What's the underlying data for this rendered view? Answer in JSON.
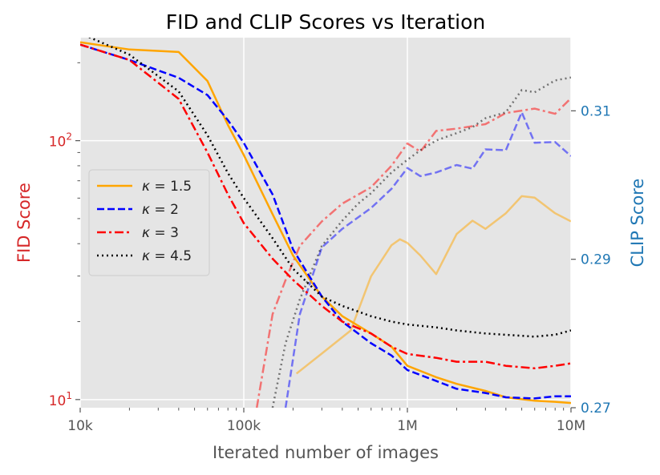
{
  "chart_data": {
    "type": "line",
    "title": "FID and CLIP Scores vs Iteration",
    "xlabel": "Iterated number of images",
    "ylabel_left": "FID Score",
    "ylabel_right": "CLIP Score",
    "x_scale": "log",
    "xlim": [
      10000,
      10000000
    ],
    "x_ticks": [
      {
        "value": 10000,
        "label": "10k"
      },
      {
        "value": 100000,
        "label": "100k"
      },
      {
        "value": 1000000,
        "label": "1M"
      },
      {
        "value": 10000000,
        "label": "10M"
      }
    ],
    "y_left_scale": "log",
    "y_left_lim": [
      9.3,
      250
    ],
    "y_left_ticks": [
      {
        "value": 10,
        "base": "10",
        "exp": "1"
      },
      {
        "value": 100,
        "base": "10",
        "exp": "2"
      }
    ],
    "y_right_lim": [
      0.27,
      0.31986
    ],
    "y_right_ticks": [
      {
        "value": 0.27,
        "label": "0.27"
      },
      {
        "value": 0.29,
        "label": "0.29"
      },
      {
        "value": 0.31,
        "label": "0.31"
      }
    ],
    "legend": {
      "placement": "center-left",
      "entries": [
        {
          "prefix": "κ",
          "value": " = 1.5",
          "color": "#ffa500",
          "dash": "solid"
        },
        {
          "prefix": "κ",
          "value": " = 2",
          "color": "#0000ff",
          "dash": "dashed"
        },
        {
          "prefix": "κ",
          "value": " = 3",
          "color": "#ff0000",
          "dash": "dashdot"
        },
        {
          "prefix": "κ",
          "value": " = 4.5",
          "color": "#000000",
          "dash": "dotted"
        }
      ]
    },
    "fid_series": [
      {
        "name": "κ = 1.5",
        "color": "#ffa500",
        "dash": "solid",
        "x": [
          10000,
          20000,
          40000,
          60000,
          80000,
          100000,
          150000,
          200000,
          300000,
          400000,
          600000,
          800000,
          1000000,
          1500000,
          2000000,
          3000000,
          4000000,
          6000000,
          8000000,
          10000000
        ],
        "y": [
          240,
          225,
          220,
          170,
          115,
          88,
          52,
          36,
          25,
          21,
          18,
          16,
          13.5,
          12.2,
          11.5,
          10.8,
          10.2,
          9.9,
          9.8,
          9.7
        ]
      },
      {
        "name": "κ = 2",
        "color": "#0000ff",
        "dash": "dashed",
        "x": [
          10000,
          20000,
          40000,
          60000,
          80000,
          100000,
          150000,
          200000,
          300000,
          400000,
          600000,
          800000,
          1000000,
          1500000,
          2000000,
          3000000,
          4000000,
          6000000,
          8000000,
          10000000
        ],
        "y": [
          235,
          205,
          175,
          150,
          120,
          98,
          62,
          38,
          25,
          20,
          16.5,
          14.8,
          13,
          11.8,
          11,
          10.6,
          10.2,
          10.1,
          10.3,
          10.3
        ]
      },
      {
        "name": "κ = 3",
        "color": "#ff0000",
        "dash": "dashdot",
        "x": [
          10000,
          20000,
          40000,
          60000,
          80000,
          100000,
          150000,
          200000,
          300000,
          400000,
          600000,
          800000,
          1000000,
          1500000,
          2000000,
          3000000,
          4000000,
          6000000,
          8000000,
          10000000
        ],
        "y": [
          235,
          205,
          145,
          90,
          62,
          48,
          35,
          29,
          23,
          20,
          18,
          16,
          15,
          14.5,
          14,
          14,
          13.5,
          13.2,
          13.5,
          13.8
        ]
      },
      {
        "name": "κ = 4.5",
        "color": "#000000",
        "dash": "dotted",
        "x": [
          10000,
          20000,
          40000,
          60000,
          80000,
          100000,
          150000,
          200000,
          300000,
          400000,
          600000,
          800000,
          1000000,
          1500000,
          2000000,
          3000000,
          4000000,
          6000000,
          8000000,
          10000000
        ],
        "y": [
          260,
          215,
          155,
          105,
          75,
          60,
          42,
          32,
          25,
          23,
          21,
          20,
          19.5,
          19,
          18.5,
          18,
          17.8,
          17.5,
          17.8,
          18.5
        ]
      }
    ],
    "clip_series": [
      {
        "name": "κ = 1.5 (CLIP)",
        "color": "#ffa500",
        "dash": "solid",
        "alpha": 0.5,
        "x": [
          210000,
          300000,
          450000,
          600000,
          800000,
          900000,
          1000000,
          1200000,
          1500000,
          2000000,
          2500000,
          3000000,
          4000000,
          5000000,
          6000000,
          8000000,
          10000000
        ],
        "y": [
          0.2746,
          0.2773,
          0.2804,
          0.2877,
          0.2919,
          0.2927,
          0.2922,
          0.2905,
          0.288,
          0.2934,
          0.2952,
          0.2941,
          0.2962,
          0.2985,
          0.2983,
          0.2962,
          0.2951
        ]
      },
      {
        "name": "κ = 2 (CLIP)",
        "color": "#0000ff",
        "dash": "dashed",
        "alpha": 0.5,
        "x": [
          180000,
          220000,
          300000,
          400000,
          600000,
          800000,
          1000000,
          1200000,
          1500000,
          2000000,
          2500000,
          3000000,
          4000000,
          5000000,
          6000000,
          8000000,
          10000000
        ],
        "y": [
          0.27,
          0.2826,
          0.2916,
          0.2941,
          0.2969,
          0.2995,
          0.3023,
          0.3012,
          0.3017,
          0.3027,
          0.3022,
          0.3048,
          0.3047,
          0.3098,
          0.3057,
          0.3058,
          0.3039
        ]
      },
      {
        "name": "κ = 3 (CLIP)",
        "color": "#ff0000",
        "dash": "dashdot",
        "alpha": 0.5,
        "x": [
          120000,
          150000,
          180000,
          220000,
          300000,
          400000,
          600000,
          800000,
          1000000,
          1200000,
          1500000,
          2000000,
          3000000,
          4000000,
          6000000,
          8000000,
          10000000
        ],
        "y": [
          0.27,
          0.2826,
          0.2872,
          0.2918,
          0.2951,
          0.2975,
          0.2997,
          0.3026,
          0.3056,
          0.3045,
          0.3073,
          0.3076,
          0.3082,
          0.3097,
          0.3103,
          0.3096,
          0.3117
        ]
      },
      {
        "name": "κ = 4.5 (CLIP)",
        "color": "#000000",
        "dash": "dotted",
        "alpha": 0.5,
        "x": [
          150000,
          180000,
          220000,
          300000,
          400000,
          500000,
          600000,
          800000,
          1000000,
          1200000,
          1500000,
          2000000,
          2500000,
          3000000,
          4000000,
          5000000,
          6000000,
          8000000,
          10000000
        ],
        "y": [
          0.27,
          0.2787,
          0.2846,
          0.2918,
          0.2952,
          0.2975,
          0.2989,
          0.3017,
          0.3034,
          0.3047,
          0.306,
          0.307,
          0.3078,
          0.309,
          0.3098,
          0.3128,
          0.3125,
          0.3141,
          0.3145
        ]
      }
    ]
  }
}
